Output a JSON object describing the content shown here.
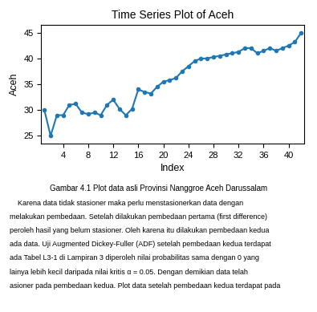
{
  "chart_data": {
    "type": "line",
    "title": "Time Series Plot of Aceh",
    "xlabel": "Index",
    "ylabel": "Aceh",
    "x": [
      1,
      2,
      3,
      4,
      5,
      6,
      7,
      8,
      9,
      10,
      11,
      12,
      13,
      14,
      15,
      16,
      17,
      18,
      19,
      20,
      21,
      22,
      23,
      24,
      25,
      26,
      27,
      28,
      29,
      30,
      31,
      32,
      33,
      34,
      35,
      36,
      37,
      38,
      39,
      40,
      41,
      42
    ],
    "values": [
      30.0,
      25.0,
      29.0,
      29.0,
      31.0,
      31.2,
      29.5,
      29.2,
      29.5,
      29.0,
      31.0,
      32.0,
      30.2,
      29.0,
      30.2,
      34.0,
      33.5,
      33.2,
      34.5,
      35.5,
      35.8,
      36.2,
      37.5,
      38.5,
      39.5,
      40.0,
      40.0,
      40.3,
      40.5,
      40.8,
      41.0,
      41.3,
      42.0,
      42.0,
      41.0,
      41.5,
      42.0,
      41.5,
      42.0,
      42.5,
      43.2,
      45.0
    ],
    "marker": "o",
    "xlim": [
      0.5,
      42.5
    ],
    "ylim": [
      23.5,
      46.5
    ],
    "xticks": [
      4,
      8,
      12,
      16,
      20,
      24,
      28,
      32,
      36,
      40
    ],
    "yticks": [
      25,
      30,
      35,
      40,
      45
    ],
    "annotations": [
      "Gambar 4.1 Plot data asli Provinsi Nanggroe Aceh Darussalam",
      "    Karena data tidak stasioner maka perlu menstasionerkan data dengan",
      "melakukan pembedaan. Setelah dilakukan pembedaan pertama (first difference)",
      "peroleh hasil yang belum stasioner. Oleh karena itu dilakukan pembedaan kedua",
      "ada data. Uji Augmented Dickey-Fuller (ADF) setelah pembedaan kedua terdapat",
      "ada Tabel L3-1 di Lampiran 3 diperoleh nilai probabilitas sama dengan 0 yang",
      "lainya lebih kecil daripada nilai kritis α = 0.05. Dengan demikian data telah",
      "asioner pada pembedaan kedua. Plot data setelah pembedaan kedua terdapat pada"
    ]
  }
}
